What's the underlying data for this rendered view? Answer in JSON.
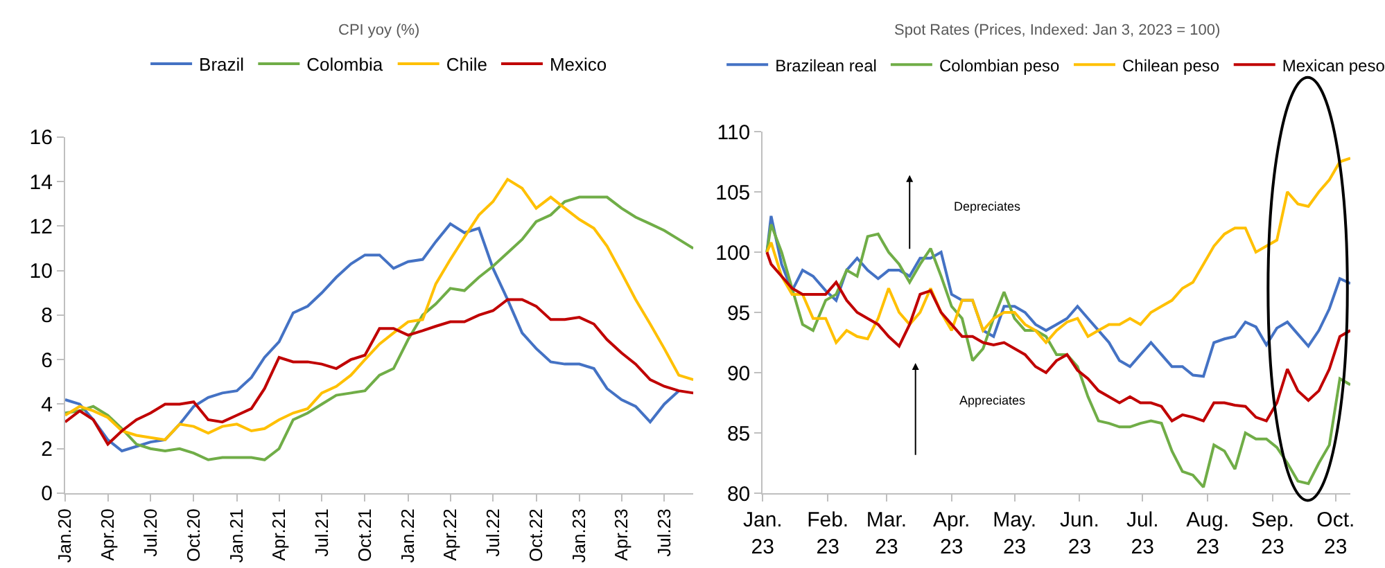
{
  "chart_data": [
    {
      "type": "line",
      "title": "CPI yoy (%)",
      "legend": "top",
      "x": [
        "2020-01",
        "2020-02",
        "2020-03",
        "2020-04",
        "2020-05",
        "2020-06",
        "2020-07",
        "2020-08",
        "2020-09",
        "2020-10",
        "2020-11",
        "2020-12",
        "2021-01",
        "2021-02",
        "2021-03",
        "2021-04",
        "2021-05",
        "2021-06",
        "2021-07",
        "2021-08",
        "2021-09",
        "2021-10",
        "2021-11",
        "2021-12",
        "2022-01",
        "2022-02",
        "2022-03",
        "2022-04",
        "2022-05",
        "2022-06",
        "2022-07",
        "2022-08",
        "2022-09",
        "2022-10",
        "2022-11",
        "2022-12",
        "2023-01",
        "2023-02",
        "2023-03",
        "2023-04",
        "2023-05",
        "2023-06",
        "2023-07",
        "2023-08",
        "2023-09"
      ],
      "series": [
        {
          "name": "Brazil",
          "color": "#4472c4",
          "values": [
            4.2,
            4.0,
            3.3,
            2.4,
            1.9,
            2.1,
            2.3,
            2.4,
            3.1,
            3.9,
            4.3,
            4.5,
            4.6,
            5.2,
            6.1,
            6.8,
            8.1,
            8.4,
            9.0,
            9.7,
            10.3,
            10.7,
            10.7,
            10.1,
            10.4,
            10.5,
            11.3,
            12.1,
            11.7,
            11.9,
            10.1,
            8.7,
            7.2,
            6.5,
            5.9,
            5.8,
            5.8,
            5.6,
            4.7,
            4.2,
            3.9,
            3.2,
            4.0,
            4.6,
            null
          ]
        },
        {
          "name": "Colombia",
          "color": "#70ad47",
          "values": [
            3.6,
            3.7,
            3.9,
            3.5,
            2.9,
            2.2,
            2.0,
            1.9,
            2.0,
            1.8,
            1.5,
            1.6,
            1.6,
            1.6,
            1.5,
            2.0,
            3.3,
            3.6,
            4.0,
            4.4,
            4.5,
            4.6,
            5.3,
            5.6,
            6.9,
            8.0,
            8.5,
            9.2,
            9.1,
            9.7,
            10.2,
            10.8,
            11.4,
            12.2,
            12.5,
            13.1,
            13.3,
            13.3,
            13.3,
            12.8,
            12.4,
            12.1,
            11.8,
            11.4,
            11.0
          ]
        },
        {
          "name": "Chile",
          "color": "#ffc000",
          "values": [
            3.5,
            3.9,
            3.7,
            3.4,
            2.8,
            2.6,
            2.5,
            2.4,
            3.1,
            3.0,
            2.7,
            3.0,
            3.1,
            2.8,
            2.9,
            3.3,
            3.6,
            3.8,
            4.5,
            4.8,
            5.3,
            6.0,
            6.7,
            7.2,
            7.7,
            7.8,
            9.4,
            10.5,
            11.5,
            12.5,
            13.1,
            14.1,
            13.7,
            12.8,
            13.3,
            12.8,
            12.3,
            11.9,
            11.1,
            9.9,
            8.7,
            7.6,
            6.5,
            5.3,
            5.1
          ]
        },
        {
          "name": "Mexico",
          "color": "#c00000",
          "values": [
            3.2,
            3.7,
            3.3,
            2.2,
            2.8,
            3.3,
            3.6,
            4.0,
            4.0,
            4.1,
            3.3,
            3.2,
            3.5,
            3.8,
            4.7,
            6.1,
            5.9,
            5.9,
            5.8,
            5.6,
            6.0,
            6.2,
            7.4,
            7.4,
            7.1,
            7.3,
            7.5,
            7.7,
            7.7,
            8.0,
            8.2,
            8.7,
            8.7,
            8.4,
            7.8,
            7.8,
            7.9,
            7.6,
            6.9,
            6.3,
            5.8,
            5.1,
            4.8,
            4.6,
            4.5
          ]
        }
      ],
      "xlim": [
        "2020-01",
        "2023-09"
      ],
      "xticks": [
        {
          "value": "2020-01",
          "label": "Jan.20"
        },
        {
          "value": "2020-04",
          "label": "Apr.20"
        },
        {
          "value": "2020-07",
          "label": "Jul.20"
        },
        {
          "value": "2020-10",
          "label": "Oct.20"
        },
        {
          "value": "2021-01",
          "label": "Jan.21"
        },
        {
          "value": "2021-04",
          "label": "Apr.21"
        },
        {
          "value": "2021-07",
          "label": "Jul.21"
        },
        {
          "value": "2021-10",
          "label": "Oct.21"
        },
        {
          "value": "2022-01",
          "label": "Jan.22"
        },
        {
          "value": "2022-04",
          "label": "Apr.22"
        },
        {
          "value": "2022-07",
          "label": "Jul.22"
        },
        {
          "value": "2022-10",
          "label": "Oct.22"
        },
        {
          "value": "2023-01",
          "label": "Jan.23"
        },
        {
          "value": "2023-04",
          "label": "Apr.23"
        },
        {
          "value": "2023-07",
          "label": "Jul.23"
        }
      ],
      "ylim": [
        0,
        16
      ],
      "yticks": [
        0,
        2,
        4,
        6,
        8,
        10,
        12,
        14,
        16
      ]
    },
    {
      "type": "line",
      "title": "Spot Rates (Prices, Indexed: Jan 3, 2023 = 100)",
      "legend": "top",
      "annotations": [
        "Depreciates",
        "Appreciates"
      ],
      "x": [
        "2023-01-03",
        "2023-01-05",
        "2023-01-10",
        "2023-01-15",
        "2023-01-20",
        "2023-01-25",
        "2023-01-31",
        "2023-02-05",
        "2023-02-10",
        "2023-02-15",
        "2023-02-20",
        "2023-02-25",
        "2023-03-02",
        "2023-03-07",
        "2023-03-12",
        "2023-03-17",
        "2023-03-22",
        "2023-03-27",
        "2023-04-01",
        "2023-04-06",
        "2023-04-11",
        "2023-04-16",
        "2023-04-21",
        "2023-04-26",
        "2023-05-01",
        "2023-05-06",
        "2023-05-11",
        "2023-05-16",
        "2023-05-21",
        "2023-05-26",
        "2023-05-31",
        "2023-06-05",
        "2023-06-10",
        "2023-06-15",
        "2023-06-20",
        "2023-06-25",
        "2023-06-30",
        "2023-07-05",
        "2023-07-10",
        "2023-07-15",
        "2023-07-20",
        "2023-07-25",
        "2023-07-30",
        "2023-08-04",
        "2023-08-09",
        "2023-08-14",
        "2023-08-19",
        "2023-08-24",
        "2023-08-29",
        "2023-09-03",
        "2023-09-08",
        "2023-09-13",
        "2023-09-18",
        "2023-09-23",
        "2023-09-28",
        "2023-10-03",
        "2023-10-08"
      ],
      "series": [
        {
          "name": "Brazilean real",
          "color": "#4472c4",
          "values": [
            100,
            103,
            99,
            96.8,
            98.5,
            98,
            96.8,
            96,
            98.5,
            99.5,
            98.5,
            97.8,
            98.5,
            98.5,
            98,
            99.5,
            99.5,
            100,
            96.5,
            96,
            96,
            93.5,
            93,
            95.5,
            95.5,
            95,
            94,
            93.5,
            94,
            94.5,
            95.5,
            94.5,
            93.5,
            92.5,
            91,
            90.5,
            91.5,
            92.5,
            91.5,
            90.5,
            90.5,
            89.8,
            89.7,
            92.5,
            92.8,
            93,
            94.2,
            93.8,
            92.3,
            93.7,
            94.2,
            93.2,
            92.2,
            93.5,
            95.3,
            97.8,
            97.4
          ]
        },
        {
          "name": "Colombian peso",
          "color": "#70ad47",
          "values": [
            100,
            102.3,
            100,
            97,
            94,
            93.5,
            96,
            96.5,
            98.5,
            98,
            101.3,
            101.5,
            100,
            99,
            97.5,
            99,
            100.3,
            98,
            95.5,
            94.5,
            91,
            92,
            94.5,
            96.7,
            94.5,
            93.5,
            93.5,
            93,
            91.5,
            91.5,
            90.5,
            88,
            86,
            85.8,
            85.5,
            85.5,
            85.8,
            86,
            85.8,
            83.5,
            81.8,
            81.5,
            80.5,
            84,
            83.5,
            82,
            85,
            84.5,
            84.5,
            83.8,
            82.5,
            81,
            80.8,
            82.5,
            84,
            89.5,
            89
          ]
        },
        {
          "name": "Chilean peso",
          "color": "#ffc000",
          "values": [
            100,
            100.8,
            98,
            96.5,
            96.5,
            94.5,
            94.5,
            92.5,
            93.5,
            93,
            92.8,
            94.5,
            97,
            95,
            94,
            95,
            97,
            95,
            93.5,
            96,
            96,
            93.5,
            94.5,
            95,
            95,
            94,
            93.5,
            92.5,
            93.5,
            94.2,
            94.5,
            93,
            93.5,
            94,
            94,
            94.5,
            94,
            95,
            95.5,
            96,
            97,
            97.5,
            99,
            100.5,
            101.5,
            102,
            102,
            100,
            100.5,
            101,
            105,
            104,
            103.8,
            105,
            106,
            107.5,
            107.8
          ]
        },
        {
          "name": "Mexican peso",
          "color": "#c00000",
          "values": [
            100,
            99,
            98,
            97,
            96.5,
            96.5,
            96.5,
            97.5,
            96,
            95,
            94.5,
            94,
            93,
            92.2,
            94,
            96.5,
            96.8,
            95,
            94,
            93,
            93,
            92.5,
            92.3,
            92.5,
            92,
            91.5,
            90.5,
            90,
            91,
            91.5,
            90.2,
            89.5,
            88.5,
            88,
            87.5,
            88,
            87.5,
            87.5,
            87.2,
            86,
            86.5,
            86.3,
            86,
            87.5,
            87.5,
            87.3,
            87.2,
            86.3,
            86,
            87.5,
            90.3,
            88.5,
            87.7,
            88.5,
            90.3,
            93,
            93.5
          ]
        }
      ],
      "xlim": [
        "2023-01-01",
        "2023-10-08"
      ],
      "xticks": [
        {
          "value": "2023-01-01",
          "label": "Jan.\n23"
        },
        {
          "value": "2023-02-01",
          "label": "Feb.\n23"
        },
        {
          "value": "2023-03-01",
          "label": "Mar.\n23"
        },
        {
          "value": "2023-04-01",
          "label": "Apr.\n23"
        },
        {
          "value": "2023-05-01",
          "label": "May.\n23"
        },
        {
          "value": "2023-06-01",
          "label": "Jun.\n23"
        },
        {
          "value": "2023-07-01",
          "label": "Jul.\n23"
        },
        {
          "value": "2023-08-01",
          "label": "Aug.\n23"
        },
        {
          "value": "2023-09-01",
          "label": "Sep.\n23"
        },
        {
          "value": "2023-10-01",
          "label": "Oct.\n23"
        }
      ],
      "ylim": [
        80,
        110
      ],
      "yticks": [
        80,
        85,
        90,
        95,
        100,
        105,
        110
      ]
    }
  ]
}
